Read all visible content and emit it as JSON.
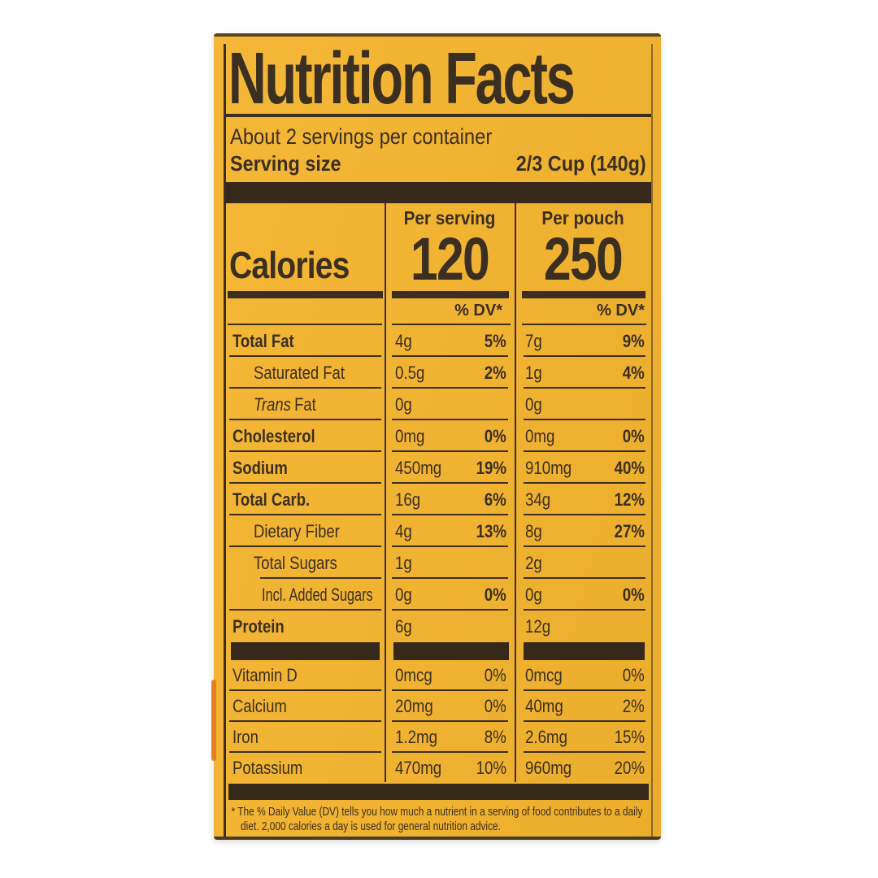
{
  "colors": {
    "package_yellow": "#f0b231",
    "text_dark": "#3b2f21",
    "background_white": "#ffffff",
    "edge_orange": "#e6801f"
  },
  "label": {
    "title": "Nutrition Facts",
    "servings_per_container": "About 2 servings per container",
    "serving_size_label": "Serving size",
    "serving_size_value": "2/3 Cup (140g)",
    "calories": {
      "label": "Calories",
      "dv_header": "% DV*",
      "per_serving": {
        "header": "Per serving",
        "value": "120"
      },
      "per_pouch": {
        "header": "Per pouch",
        "value": "250"
      }
    },
    "nutrients": [
      {
        "name": "Total Fat",
        "bold": true,
        "serving_amount": "4g",
        "serving_dv": "5%",
        "pouch_amount": "7g",
        "pouch_dv": "9%"
      },
      {
        "name": "Saturated Fat",
        "indent": 1,
        "serving_amount": "0.5g",
        "serving_dv": "2%",
        "pouch_amount": "1g",
        "pouch_dv": "4%"
      },
      {
        "name_italic": "Trans",
        "name": "Fat",
        "indent": 1,
        "serving_amount": "0g",
        "serving_dv": "",
        "pouch_amount": "0g",
        "pouch_dv": ""
      },
      {
        "name": "Cholesterol",
        "bold": true,
        "serving_amount": "0mg",
        "serving_dv": "0%",
        "pouch_amount": "0mg",
        "pouch_dv": "0%"
      },
      {
        "name": "Sodium",
        "bold": true,
        "serving_amount": "450mg",
        "serving_dv": "19%",
        "pouch_amount": "910mg",
        "pouch_dv": "40%"
      },
      {
        "name": "Total Carb.",
        "bold": true,
        "serving_amount": "16g",
        "serving_dv": "6%",
        "pouch_amount": "34g",
        "pouch_dv": "12%"
      },
      {
        "name": "Dietary Fiber",
        "indent": 1,
        "serving_amount": "4g",
        "serving_dv": "13%",
        "pouch_amount": "8g",
        "pouch_dv": "27%"
      },
      {
        "name": "Total Sugars",
        "indent": 1,
        "name_line_indent": true,
        "serving_amount": "1g",
        "serving_dv": "",
        "pouch_amount": "2g",
        "pouch_dv": ""
      },
      {
        "name": "Incl. Added Sugars",
        "indent": 2,
        "serving_amount": "0g",
        "serving_dv": "0%",
        "pouch_amount": "0g",
        "pouch_dv": "0%"
      },
      {
        "name": "Protein",
        "bold": true,
        "no_line": true,
        "serving_amount": "6g",
        "serving_dv": "",
        "pouch_amount": "12g",
        "pouch_dv": ""
      }
    ],
    "vitamins": [
      {
        "name": "Vitamin D",
        "serving_amount": "0mcg",
        "serving_dv": "0%",
        "pouch_amount": "0mcg",
        "pouch_dv": "0%"
      },
      {
        "name": "Calcium",
        "serving_amount": "20mg",
        "serving_dv": "0%",
        "pouch_amount": "40mg",
        "pouch_dv": "2%"
      },
      {
        "name": "Iron",
        "serving_amount": "1.2mg",
        "serving_dv": "8%",
        "pouch_amount": "2.6mg",
        "pouch_dv": "15%"
      },
      {
        "name": "Potassium",
        "no_line": true,
        "serving_amount": "470mg",
        "serving_dv": "10%",
        "pouch_amount": "960mg",
        "pouch_dv": "20%"
      }
    ],
    "footnote": "* The % Daily Value (DV) tells you how much a nutrient in a serving of food contributes to a daily diet. 2,000 calories a day is used for general nutrition advice."
  }
}
